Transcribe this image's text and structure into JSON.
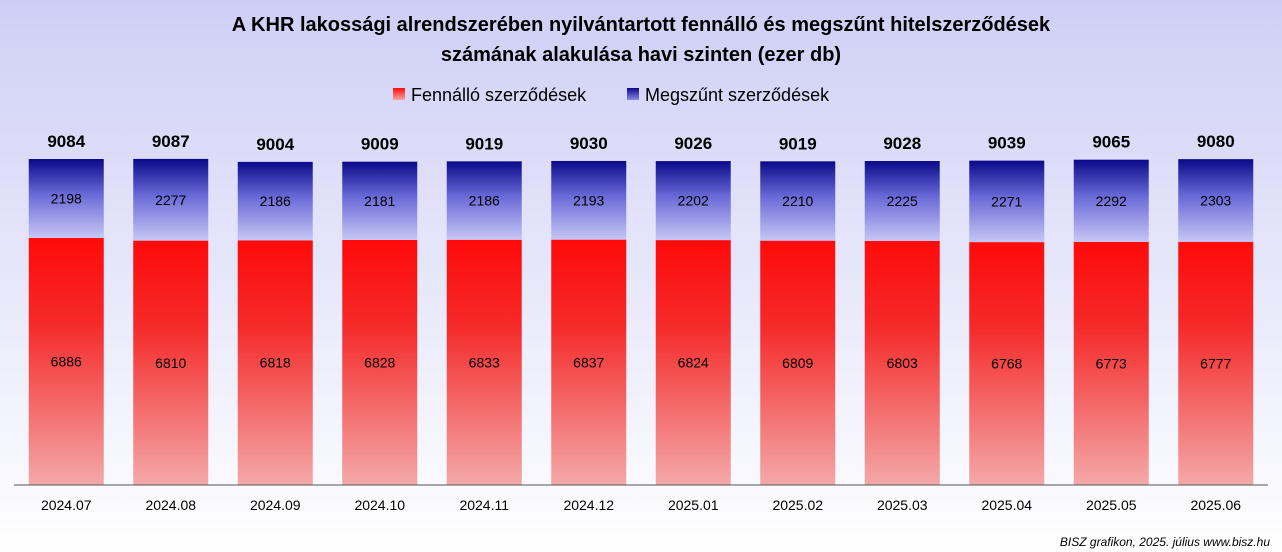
{
  "chart_data": {
    "type": "bar",
    "stacked": true,
    "title": "A KHR lakossági alrendszerében nyilvántartott fennálló és megszűnt hitelszerződések számának alakulása havi szinten (ezer db)",
    "title_lines": [
      "A KHR lakossági alrendszerében nyilvántartott fennálló és megszűnt hitelszerződések",
      "számának alakulása havi szinten (ezer db)"
    ],
    "categories": [
      "2024.07",
      "2024.08",
      "2024.09",
      "2024.10",
      "2024.11",
      "2024.12",
      "2025.01",
      "2025.02",
      "2025.03",
      "2025.04",
      "2025.05",
      "2025.06"
    ],
    "series": [
      {
        "name": "Fennálló szerződések",
        "values": [
          6886,
          6810,
          6818,
          6828,
          6833,
          6837,
          6824,
          6809,
          6803,
          6768,
          6773,
          6777
        ],
        "color": "#ff0a0a"
      },
      {
        "name": "Megszűnt szerződések",
        "values": [
          2198,
          2277,
          2186,
          2181,
          2186,
          2193,
          2202,
          2210,
          2225,
          2271,
          2292,
          2303
        ],
        "color": "#0a0a8c"
      }
    ],
    "totals": [
      9084,
      9087,
      9004,
      9009,
      9019,
      9030,
      9026,
      9019,
      9028,
      9039,
      9065,
      9080
    ],
    "legend_position": "top",
    "grid": false,
    "ylim": [
      0,
      9084
    ]
  },
  "source": "BISZ grafikon, 2025. július www.bisz.hu"
}
